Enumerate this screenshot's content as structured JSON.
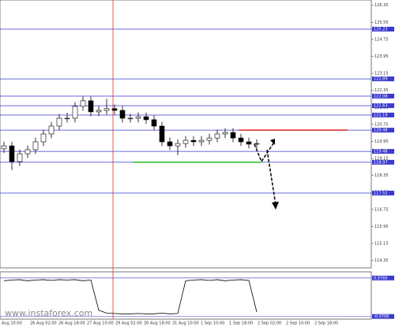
{
  "chart_data": {
    "type": "candlestick",
    "watermark": "www.instaforex.com",
    "open": [
      119.6,
      119.74,
      119.0,
      119.37,
      119.56,
      119.93,
      120.3,
      120.67,
      121.04,
      121.04,
      121.6,
      121.86,
      121.34,
      121.41,
      121.49,
      121.41,
      121.04,
      121.04,
      121.11,
      120.97,
      120.67,
      119.93,
      119.74,
      119.85,
      120.0,
      119.93,
      120.0,
      120.11,
      120.3,
      120.37,
      120.11,
      119.93,
      119.82
    ],
    "high": [
      119.94,
      119.94,
      119.57,
      119.76,
      120.13,
      120.5,
      120.87,
      121.24,
      121.3,
      121.8,
      122.06,
      122.06,
      121.61,
      121.95,
      121.69,
      121.61,
      121.24,
      121.31,
      121.31,
      121.17,
      120.87,
      120.13,
      120.05,
      120.2,
      120.2,
      120.2,
      120.31,
      120.5,
      120.57,
      120.57,
      120.31,
      120.13,
      120.05
    ],
    "low": [
      119.4,
      118.6,
      118.8,
      119.17,
      119.36,
      119.73,
      120.1,
      120.47,
      120.84,
      120.84,
      121.4,
      121.14,
      121.14,
      121.21,
      121.21,
      120.84,
      120.84,
      120.84,
      120.77,
      120.47,
      119.73,
      119.54,
      119.3,
      119.65,
      119.73,
      119.73,
      119.8,
      119.91,
      120.1,
      119.91,
      119.73,
      119.62,
      119.62
    ],
    "close": [
      119.74,
      119.0,
      119.37,
      119.56,
      119.93,
      120.3,
      120.67,
      121.04,
      121.04,
      121.6,
      121.86,
      121.34,
      121.41,
      121.49,
      121.41,
      121.04,
      121.04,
      121.11,
      120.97,
      120.67,
      119.93,
      119.74,
      119.85,
      120.0,
      119.93,
      120.0,
      120.11,
      120.3,
      120.37,
      120.11,
      119.93,
      119.82,
      119.85
    ],
    "ylim": [
      114.0,
      126.6
    ],
    "yticks": [
      114.35,
      115.15,
      115.95,
      116.75,
      117.55,
      118.35,
      119.15,
      119.95,
      120.75,
      121.55,
      122.35,
      123.15,
      123.95,
      124.75,
      125.55,
      126.35
    ],
    "levels": [
      125.23,
      122.89,
      122.08,
      121.63,
      121.19,
      120.48,
      119.48,
      118.97,
      117.52
    ],
    "resistance": 120.48,
    "support": 118.97,
    "xlabels": [
      "Aug 10:00",
      "26 Aug 02:00",
      "26 Aug 18:00",
      "27 Aug 10:00",
      "29 Aug 02:00",
      "30 Aug 18:00",
      "31 Aug 10:00",
      "1 Sep 10:00",
      "1 Sep 18:00",
      "2 Sep 02:00",
      "2 Sep 10:00",
      "2 Sep 18:00"
    ],
    "indicator": {
      "values": [
        0.9,
        0.92,
        0.93,
        0.9,
        0.92,
        0.93,
        0.91,
        0.93,
        0.92,
        0.93,
        0.9,
        0.92,
        0.1,
        0.02,
        0.01,
        0.0,
        0.0,
        0.01,
        0.0,
        0.0,
        0.02,
        0.0,
        0.01,
        0.9,
        0.92,
        0.93,
        0.91,
        0.93,
        0.9,
        0.92,
        0.93,
        0.91,
        0.05
      ],
      "ylim": [
        -0.1,
        1.1
      ],
      "levels": [
        {
          "value": 0.976,
          "label": "0.9760"
        },
        {
          "value": -0.0706,
          "label": "-0.0706"
        }
      ]
    }
  }
}
